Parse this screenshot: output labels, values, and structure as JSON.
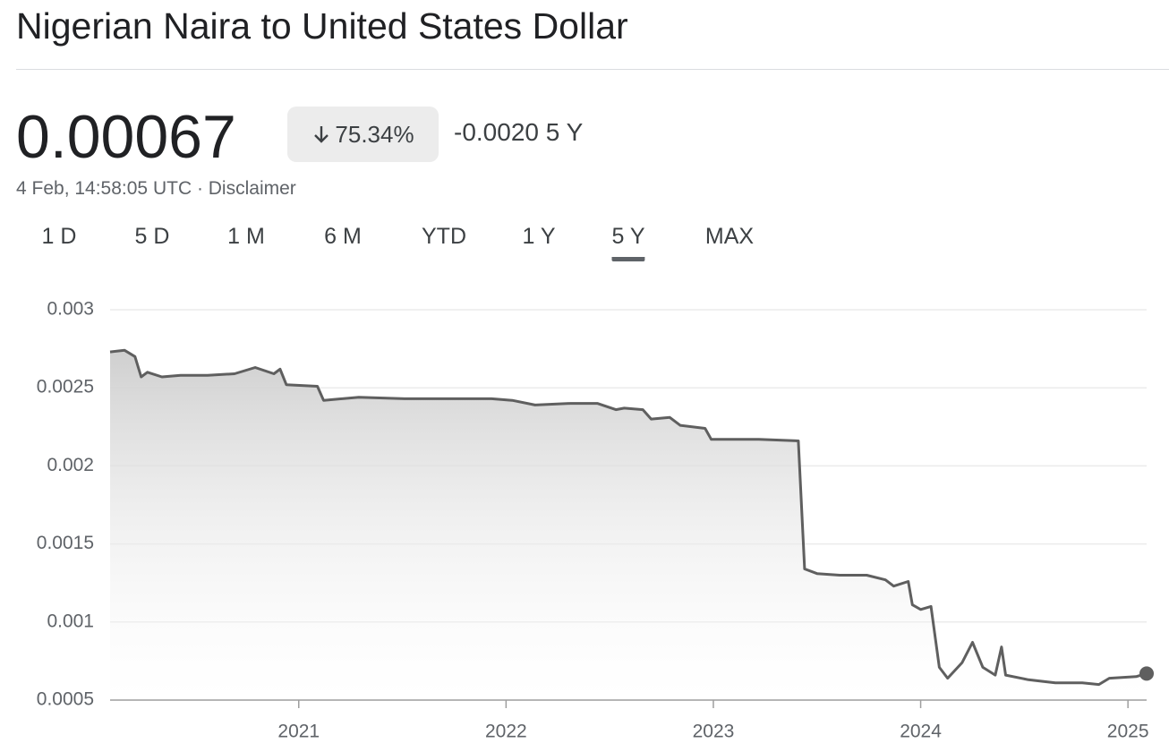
{
  "header": {
    "title": "Nigerian Naira to United States Dollar",
    "price": "0.00067",
    "change_percent": "75.34%",
    "change_value": "-0.0020",
    "change_period": "5 Y",
    "timestamp": "4 Feb, 14:58:05 UTC · Disclaimer"
  },
  "ranges": {
    "options": [
      "1 D",
      "5 D",
      "1 M",
      "6 M",
      "YTD",
      "1 Y",
      "5 Y",
      "MAX"
    ],
    "selected": 6
  },
  "chart_data": {
    "type": "area",
    "color": "#5f5f5f",
    "x": [
      2020.09,
      2020.16,
      2020.21,
      2020.24,
      2020.27,
      2020.34,
      2020.43,
      2020.56,
      2020.69,
      2020.79,
      2020.88,
      2020.91,
      2020.94,
      2021.09,
      2021.12,
      2021.29,
      2021.51,
      2021.72,
      2021.93,
      2022.03,
      2022.14,
      2022.31,
      2022.44,
      2022.53,
      2022.57,
      2022.66,
      2022.7,
      2022.79,
      2022.84,
      2022.96,
      2022.99,
      2023.07,
      2023.22,
      2023.41,
      2023.44,
      2023.5,
      2023.61,
      2023.74,
      2023.83,
      2023.87,
      2023.94,
      2023.96,
      2024.0,
      2024.05,
      2024.09,
      2024.13,
      2024.2,
      2024.25,
      2024.3,
      2024.36,
      2024.39,
      2024.41,
      2024.52,
      2024.65,
      2024.78,
      2024.86,
      2024.91,
      2025.04,
      2025.09
    ],
    "values": [
      0.00273,
      0.00274,
      0.0027,
      0.00257,
      0.0026,
      0.00257,
      0.00258,
      0.00258,
      0.00259,
      0.00263,
      0.00259,
      0.00262,
      0.00252,
      0.00251,
      0.00242,
      0.00244,
      0.00243,
      0.00243,
      0.00243,
      0.00242,
      0.00239,
      0.0024,
      0.0024,
      0.00236,
      0.00237,
      0.00236,
      0.0023,
      0.00231,
      0.00226,
      0.00224,
      0.00217,
      0.00217,
      0.00217,
      0.00216,
      0.00134,
      0.00131,
      0.0013,
      0.0013,
      0.00127,
      0.00123,
      0.00126,
      0.00111,
      0.00108,
      0.0011,
      0.00071,
      0.00064,
      0.00074,
      0.00087,
      0.00071,
      0.00066,
      0.00084,
      0.00066,
      0.00063,
      0.00061,
      0.00061,
      0.0006,
      0.00064,
      0.00065,
      0.00067
    ],
    "xlim": [
      2020.09,
      2025.09
    ],
    "xticks": [
      2021,
      2022,
      2023,
      2024,
      2025
    ],
    "ylim": [
      0.0005,
      0.003
    ],
    "yticks": [
      0.0005,
      0.001,
      0.0015,
      0.002,
      0.0025,
      0.003
    ],
    "grid": true
  }
}
